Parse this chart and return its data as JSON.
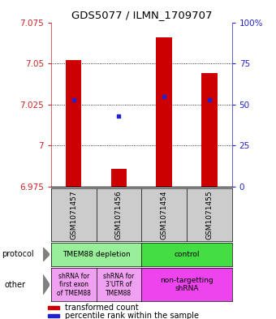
{
  "title": "GDS5077 / ILMN_1709707",
  "samples": [
    "GSM1071457",
    "GSM1071456",
    "GSM1071454",
    "GSM1071455"
  ],
  "bar_bottoms": [
    6.975,
    6.975,
    6.975,
    6.975
  ],
  "bar_tops": [
    7.052,
    6.986,
    7.066,
    7.044
  ],
  "blue_dots": [
    7.028,
    7.018,
    7.03,
    7.028
  ],
  "ylim": [
    6.975,
    7.075
  ],
  "yticks_left": [
    6.975,
    7.0,
    7.025,
    7.05,
    7.075
  ],
  "yticks_left_labels": [
    "6.975",
    "7",
    "7.025",
    "7.05",
    "7.075"
  ],
  "yticks_right": [
    0,
    25,
    50,
    75,
    100
  ],
  "yticks_right_labels": [
    "0",
    "25",
    "50",
    "75",
    "100%"
  ],
  "gridlines": [
    7.0,
    7.025,
    7.05
  ],
  "bar_color": "#cc0000",
  "dot_color": "#2222cc",
  "left_axis_color": "#cc2222",
  "right_axis_color": "#2222cc",
  "protocol_labels": [
    "TMEM88 depletion",
    "control"
  ],
  "protocol_colors": [
    "#99ee99",
    "#44dd44"
  ],
  "other_labels_left": [
    "shRNA for\nfirst exon\nof TMEM88",
    "shRNA for\n3'UTR of\nTMEM88"
  ],
  "other_label_right": "non-targetting\nshRNA",
  "other_color_left": "#f0a0f0",
  "other_color_right": "#ee44ee",
  "sample_bg_color": "#cccccc",
  "legend_red_label": "transformed count",
  "legend_blue_label": "percentile rank within the sample"
}
